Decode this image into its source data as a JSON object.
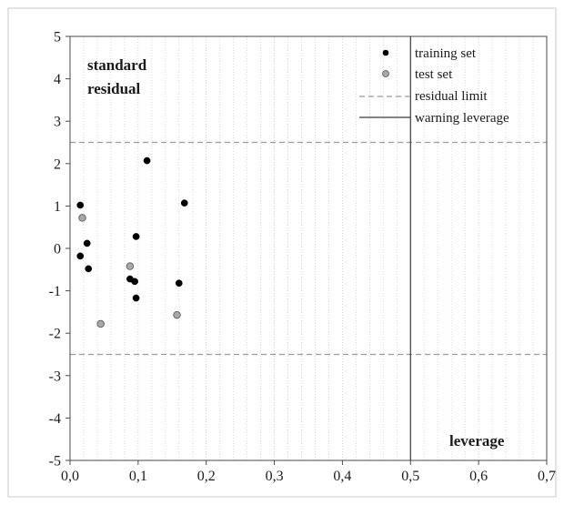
{
  "chart_data": {
    "type": "scatter",
    "xlabel": "leverage",
    "ylabel_lines": [
      "standard",
      "residual"
    ],
    "xlim": [
      0.0,
      0.7
    ],
    "ylim": [
      -5,
      5
    ],
    "x_ticks": [
      0.0,
      0.1,
      0.2,
      0.3,
      0.4,
      0.5,
      0.6,
      0.7
    ],
    "x_tick_labels": [
      "0,0",
      "0,1",
      "0,2",
      "0,3",
      "0,4",
      "0,5",
      "0,6",
      "0,7"
    ],
    "y_ticks": [
      5,
      4,
      3,
      2,
      1,
      0,
      -1,
      -2,
      -3,
      -4,
      -5
    ],
    "y_tick_labels": [
      "5",
      "4",
      "3",
      "2",
      "1",
      "0",
      "-1",
      "-2",
      "-3",
      "-4",
      "-5"
    ],
    "grid": "vertical dotted",
    "legend_position": "top-right",
    "series": [
      {
        "name": "training set",
        "marker": "filled-circle",
        "color": "#000000",
        "points": [
          {
            "x": 0.015,
            "y": 1.02
          },
          {
            "x": 0.015,
            "y": -0.18
          },
          {
            "x": 0.025,
            "y": 0.12
          },
          {
            "x": 0.027,
            "y": -0.48
          },
          {
            "x": 0.088,
            "y": -0.72
          },
          {
            "x": 0.095,
            "y": -0.78
          },
          {
            "x": 0.097,
            "y": 0.28
          },
          {
            "x": 0.097,
            "y": -1.17
          },
          {
            "x": 0.113,
            "y": 2.07
          },
          {
            "x": 0.16,
            "y": -0.82
          },
          {
            "x": 0.168,
            "y": 1.07
          }
        ]
      },
      {
        "name": "test set",
        "marker": "grey-circle",
        "color": "#a8a8a8",
        "points": [
          {
            "x": 0.018,
            "y": 0.72
          },
          {
            "x": 0.045,
            "y": -1.78
          },
          {
            "x": 0.088,
            "y": -0.42
          },
          {
            "x": 0.157,
            "y": -1.57
          }
        ]
      }
    ],
    "reference_lines": [
      {
        "name": "residual limit",
        "orientation": "horizontal",
        "values": [
          2.5,
          -2.5
        ],
        "style": "dashed",
        "color": "#9a9a9a"
      },
      {
        "name": "warning leverage",
        "orientation": "vertical",
        "values": [
          0.5
        ],
        "style": "solid",
        "color": "#3a3a3a"
      }
    ]
  }
}
